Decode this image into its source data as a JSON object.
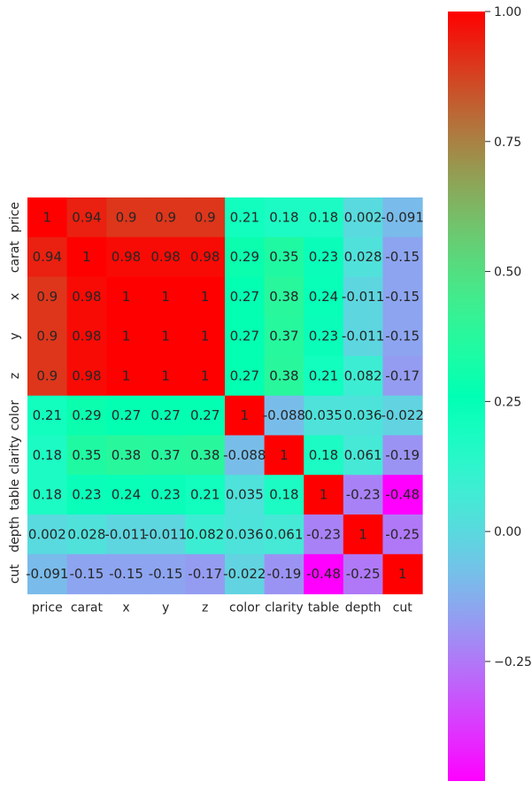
{
  "chart_data": {
    "type": "heatmap",
    "title": "",
    "xlabel": "",
    "ylabel": "",
    "x_categories": [
      "price",
      "carat",
      "x",
      "y",
      "z",
      "color",
      "clarity",
      "table",
      "depth",
      "cut"
    ],
    "y_categories": [
      "price",
      "carat",
      "x",
      "y",
      "z",
      "color",
      "clarity",
      "table",
      "depth",
      "cut"
    ],
    "values": [
      [
        1,
        0.94,
        0.9,
        0.9,
        0.9,
        0.21,
        0.18,
        0.18,
        0.002,
        -0.091
      ],
      [
        0.94,
        1,
        0.98,
        0.98,
        0.98,
        0.29,
        0.35,
        0.23,
        0.028,
        -0.15
      ],
      [
        0.9,
        0.98,
        1,
        1,
        1,
        0.27,
        0.38,
        0.24,
        -0.011,
        -0.15
      ],
      [
        0.9,
        0.98,
        1,
        1,
        1,
        0.27,
        0.37,
        0.23,
        -0.011,
        -0.15
      ],
      [
        0.9,
        0.98,
        1,
        1,
        1,
        0.27,
        0.38,
        0.21,
        0.082,
        -0.17
      ],
      [
        0.21,
        0.29,
        0.27,
        0.27,
        0.27,
        1,
        -0.088,
        0.035,
        0.036,
        -0.022
      ],
      [
        0.18,
        0.35,
        0.38,
        0.37,
        0.38,
        -0.088,
        1,
        0.18,
        0.061,
        -0.19
      ],
      [
        0.18,
        0.23,
        0.24,
        0.23,
        0.21,
        0.035,
        0.18,
        1,
        -0.23,
        -0.48
      ],
      [
        0.002,
        0.028,
        -0.011,
        -0.011,
        0.082,
        0.036,
        0.061,
        -0.23,
        1,
        -0.25
      ],
      [
        -0.091,
        -0.15,
        -0.15,
        -0.15,
        -0.17,
        -0.022,
        -0.19,
        -0.48,
        -0.25,
        1
      ]
    ],
    "annotations": [
      [
        "1",
        "0.94",
        "0.9",
        "0.9",
        "0.9",
        "0.21",
        "0.18",
        "0.18",
        "0.002",
        "-0.091"
      ],
      [
        "0.94",
        "1",
        "0.98",
        "0.98",
        "0.98",
        "0.29",
        "0.35",
        "0.23",
        "0.028",
        "-0.15"
      ],
      [
        "0.9",
        "0.98",
        "1",
        "1",
        "1",
        "0.27",
        "0.38",
        "0.24",
        "-0.011",
        "-0.15"
      ],
      [
        "0.9",
        "0.98",
        "1",
        "1",
        "1",
        "0.27",
        "0.37",
        "0.23",
        "-0.011",
        "-0.15"
      ],
      [
        "0.9",
        "0.98",
        "1",
        "1",
        "1",
        "0.27",
        "0.38",
        "0.21",
        "0.082",
        "-0.17"
      ],
      [
        "0.21",
        "0.29",
        "0.27",
        "0.27",
        "0.27",
        "1",
        "-0.088",
        "0.035",
        "0.036",
        "-0.022"
      ],
      [
        "0.18",
        "0.35",
        "0.38",
        "0.37",
        "0.38",
        "-0.088",
        "1",
        "0.18",
        "0.061",
        "-0.19"
      ],
      [
        "0.18",
        "0.23",
        "0.24",
        "0.23",
        "0.21",
        "0.035",
        "0.18",
        "1",
        "-0.23",
        "-0.48"
      ],
      [
        "0.002",
        "0.028",
        "-0.011",
        "-0.011",
        "0.082",
        "0.036",
        "0.061",
        "-0.23",
        "1",
        "-0.25"
      ],
      [
        "-0.091",
        "-0.15",
        "-0.15",
        "-0.15",
        "-0.17",
        "-0.022",
        "-0.19",
        "-0.48",
        "-0.25",
        "1"
      ]
    ],
    "colormap": "rainbow",
    "color_range": [
      -0.48,
      1.0
    ],
    "colorbar": {
      "ticks": [
        1.0,
        0.75,
        0.5,
        0.25,
        0.0,
        -0.25
      ],
      "tick_labels": [
        "1.00",
        "0.75",
        "0.50",
        "0.25",
        "0.00",
        "−0.25"
      ]
    },
    "grid": false,
    "legend": "colorbar-right"
  }
}
